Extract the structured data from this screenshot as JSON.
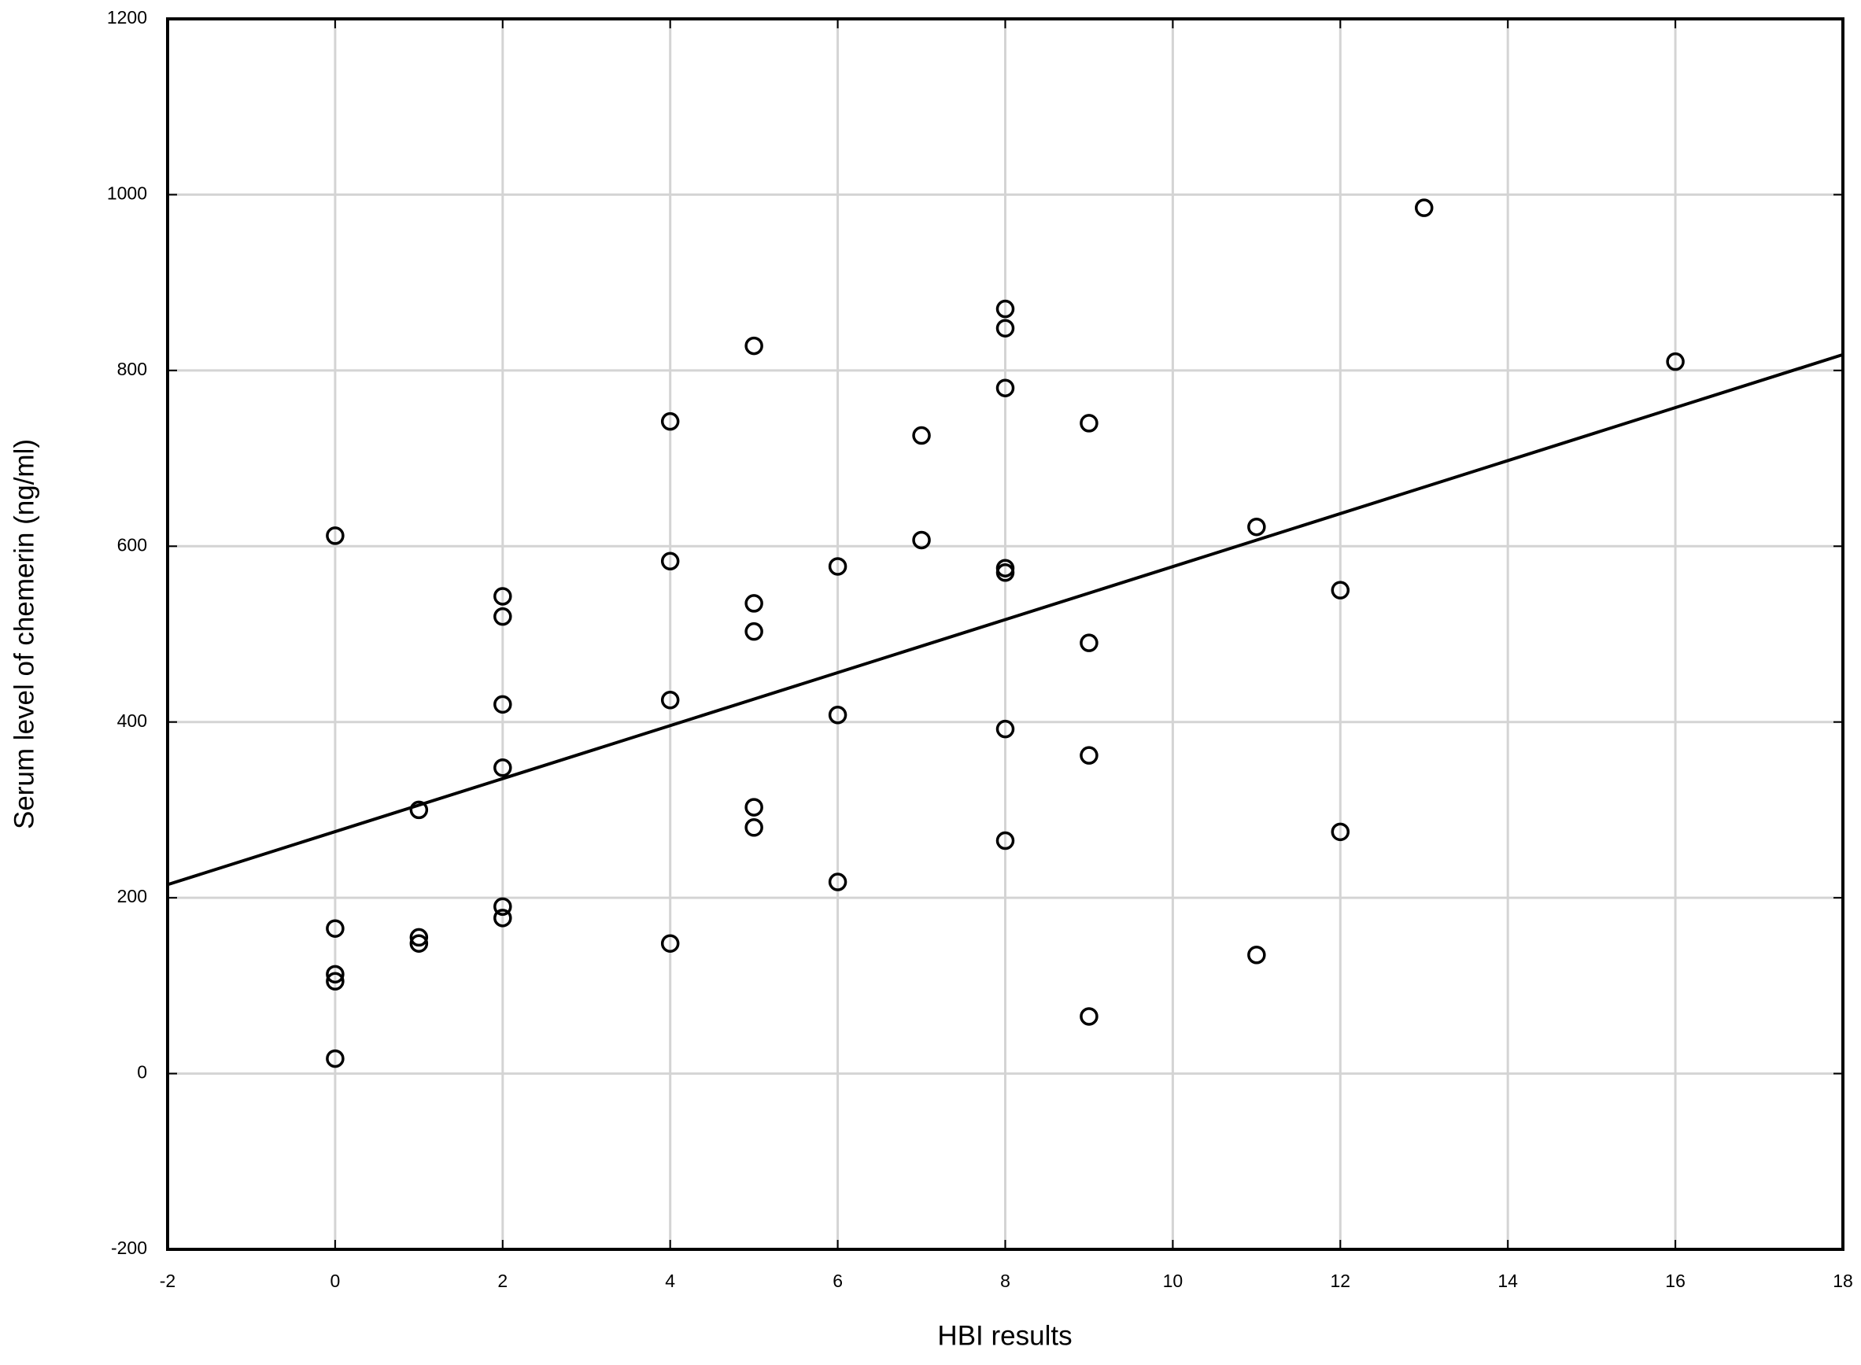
{
  "chart_data": {
    "type": "scatter",
    "x_label": "HBI results",
    "y_label": "Serum level of chemerin (ng/ml)",
    "x": [
      0,
      0,
      0,
      0,
      0,
      1,
      1,
      1,
      2,
      2,
      2,
      2,
      2,
      2,
      4,
      4,
      4,
      4,
      5,
      5,
      5,
      5,
      5,
      6,
      6,
      6,
      7,
      7,
      8,
      8,
      8,
      8,
      8,
      8,
      8,
      9,
      9,
      9,
      9,
      11,
      11,
      12,
      12,
      13,
      16
    ],
    "values": [
      612,
      165,
      113,
      105,
      17,
      300,
      155,
      148,
      543,
      520,
      420,
      348,
      190,
      177,
      742,
      583,
      425,
      148,
      828,
      535,
      503,
      303,
      280,
      577,
      408,
      218,
      726,
      607,
      870,
      848,
      780,
      575,
      570,
      392,
      265,
      740,
      490,
      362,
      65,
      622,
      135,
      550,
      275,
      985,
      810
    ],
    "marker_color": "#000000",
    "trend": {
      "x": [
        -2,
        18
      ],
      "values": [
        215,
        818
      ],
      "color": "#000000"
    },
    "xlim": [
      -2,
      18
    ],
    "ylim": [
      -200,
      1200
    ],
    "xticks": [
      -2,
      0,
      2,
      4,
      6,
      8,
      10,
      12,
      14,
      16,
      18
    ],
    "yticks": [
      -200,
      0,
      200,
      400,
      600,
      800,
      1000,
      1200
    ],
    "grid": true,
    "grid_color": "#d4d4d4"
  }
}
